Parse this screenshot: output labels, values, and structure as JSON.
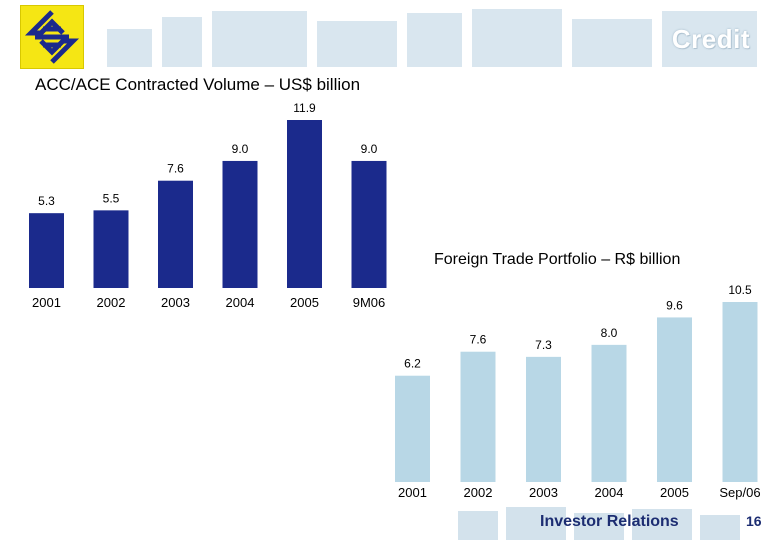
{
  "header": {
    "title": "Credit",
    "logo_icon": "banco-do-brasil-logo-icon"
  },
  "footer": {
    "label": "Investor Relations",
    "page_number": "16"
  },
  "colors": {
    "navy_bar": "#1b2a8c",
    "light_bar": "#b8d7e6",
    "footer_text": "#1c2d72"
  },
  "chart_data": [
    {
      "type": "bar",
      "title": "ACC/ACE Contracted Volume – US$ billion",
      "categories": [
        "2001",
        "2002",
        "2003",
        "2004",
        "2005",
        "9M06"
      ],
      "values": [
        5.3,
        5.5,
        7.6,
        9.0,
        11.9,
        9.0
      ],
      "value_labels": [
        "5.3",
        "5.5",
        "7.6",
        "9.0",
        "11.9",
        "9.0"
      ],
      "ylim": [
        0,
        11.9
      ],
      "color": "#1b2a8c",
      "grid": false
    },
    {
      "type": "bar",
      "title": "Foreign Trade Portfolio – R$ billion",
      "categories": [
        "2001",
        "2002",
        "2003",
        "2004",
        "2005",
        "Sep/06"
      ],
      "values": [
        6.2,
        7.6,
        7.3,
        8.0,
        9.6,
        10.5
      ],
      "value_labels": [
        "6.2",
        "7.6",
        "7.3",
        "8.0",
        "9.6",
        "10.5"
      ],
      "ylim": [
        0,
        10.5
      ],
      "color": "#b8d7e6",
      "grid": false
    }
  ]
}
